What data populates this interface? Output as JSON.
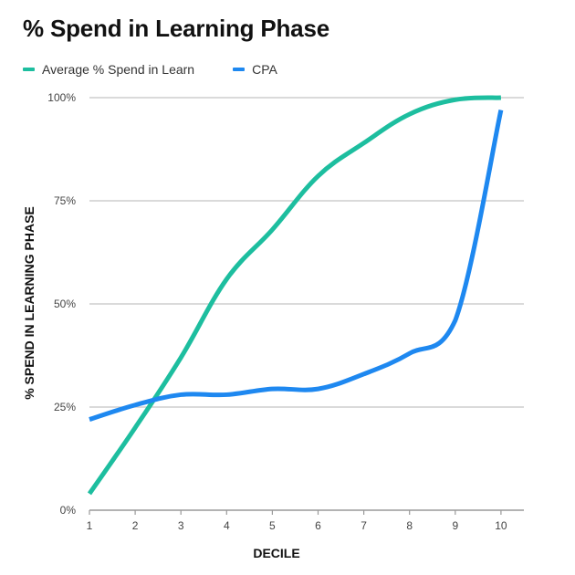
{
  "chart_data": {
    "type": "line",
    "title": "% Spend in Learning Phase",
    "xlabel": "DECILE",
    "ylabel": "% SPEND IN LEARNING PHASE",
    "x": [
      1,
      2,
      3,
      4,
      5,
      6,
      7,
      8,
      9,
      10
    ],
    "x_tick_labels": [
      "1",
      "2",
      "3",
      "4",
      "5",
      "6",
      "7",
      "8",
      "9",
      "10"
    ],
    "y_tick_labels": [
      "0%",
      "25%",
      "50%",
      "75%",
      "100%"
    ],
    "y_ticks": [
      0,
      25,
      50,
      75,
      100
    ],
    "ylim": [
      0,
      100
    ],
    "grid": "horizontal",
    "legend_position": "top-left",
    "series": [
      {
        "name": "Average % Spend in Learn",
        "color": "#1DBE9F",
        "values": [
          4,
          20,
          37,
          56,
          68,
          81,
          89,
          96,
          99.5,
          100
        ]
      },
      {
        "name": "CPA",
        "color": "#1E88F0",
        "values": [
          22,
          25.5,
          28,
          28,
          29.4,
          29.4,
          33,
          38,
          46,
          97
        ]
      }
    ]
  },
  "header": {
    "title": "% Spend in Learning Phase"
  },
  "legend": [
    {
      "label": "Average % Spend in Learn",
      "color": "#1DBE9F"
    },
    {
      "label": "CPA",
      "color": "#1E88F0"
    }
  ],
  "axes": {
    "xlabel": "DECILE",
    "ylabel": "% SPEND IN LEARNING PHASE"
  }
}
